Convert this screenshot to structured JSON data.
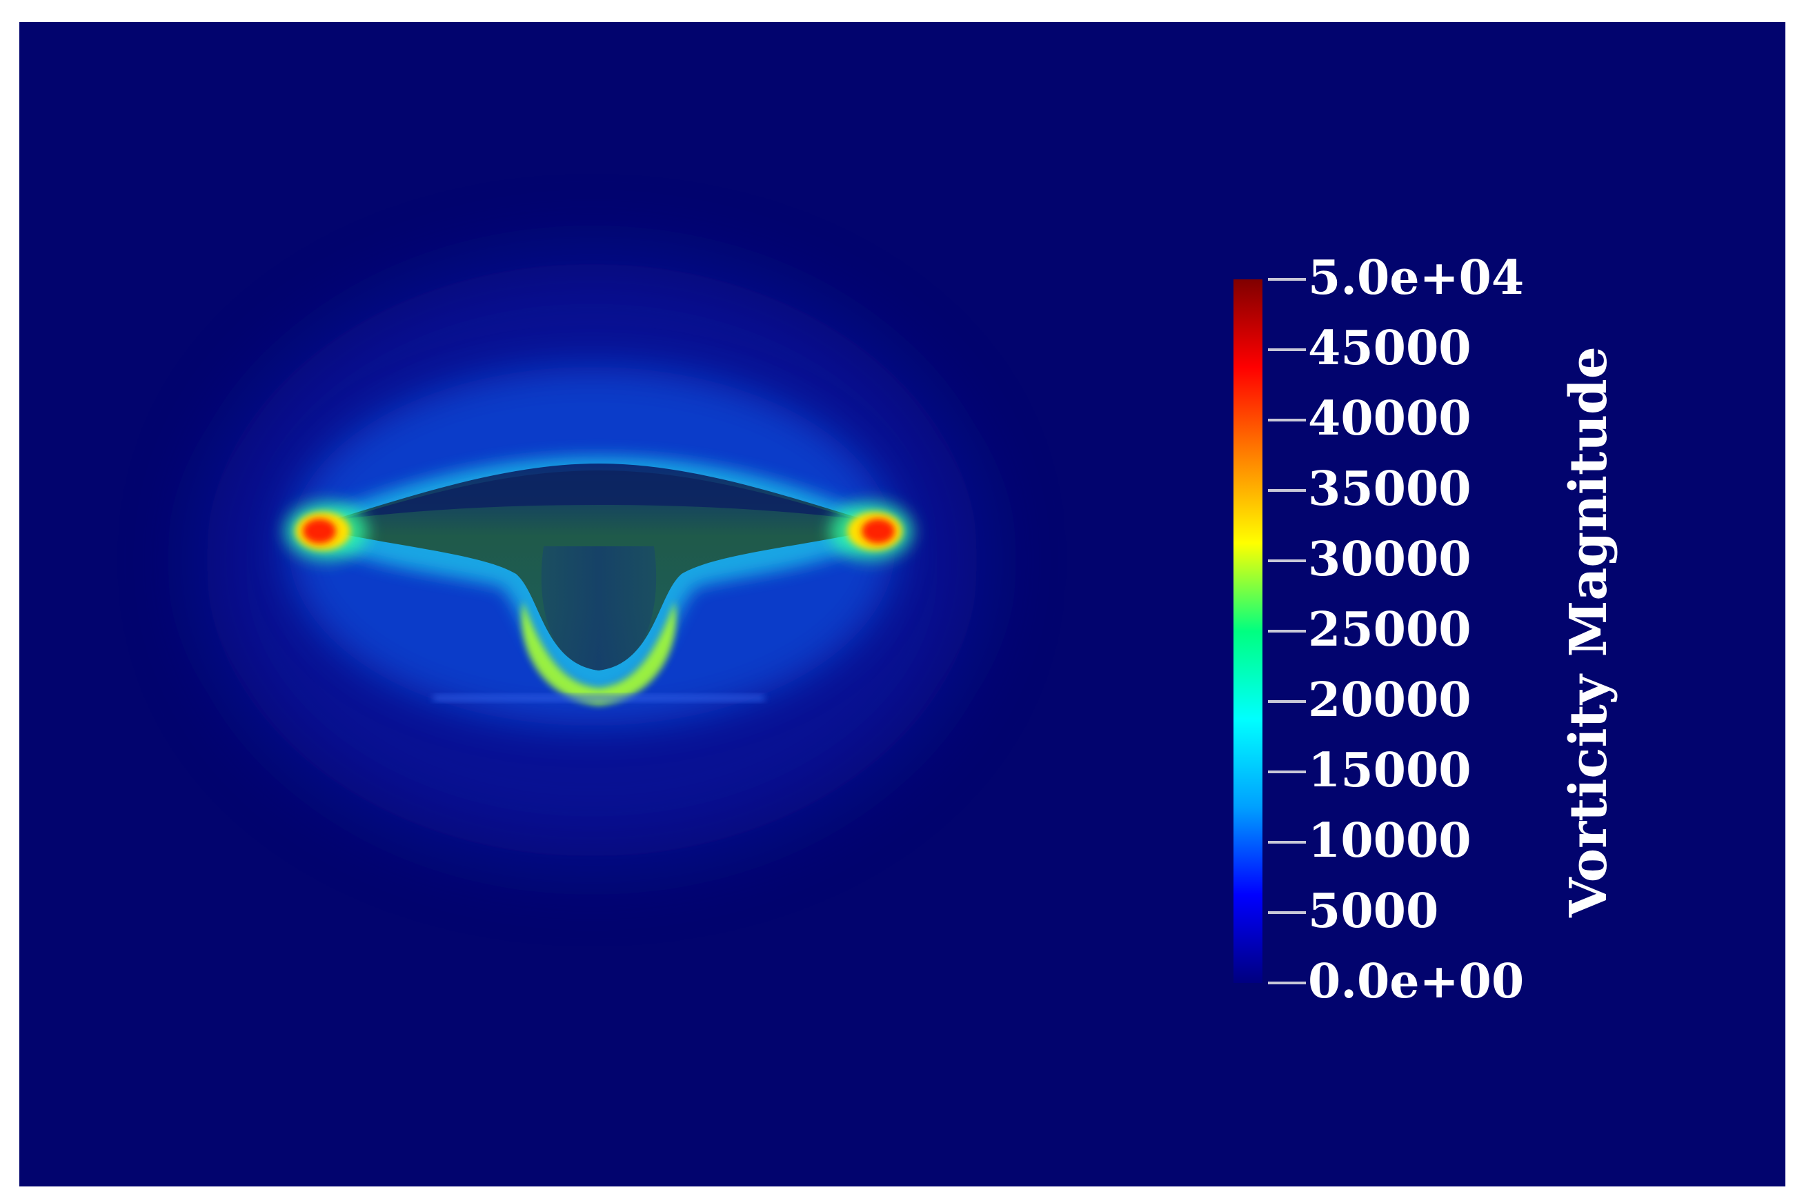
{
  "figure": {
    "background_color": "#02046e",
    "colormap": [
      "#000080",
      "#0000ff",
      "#00a0ff",
      "#00ffff",
      "#00ff80",
      "#ffff00",
      "#ff8000",
      "#ff0000",
      "#800000"
    ]
  },
  "colorbar": {
    "title": "Vorticity Magnitude",
    "min": 0,
    "max": 50000,
    "ticks": [
      {
        "value": 50000,
        "label": "5.0e+04"
      },
      {
        "value": 45000,
        "label": "45000"
      },
      {
        "value": 40000,
        "label": "40000"
      },
      {
        "value": 35000,
        "label": "35000"
      },
      {
        "value": 30000,
        "label": "30000"
      },
      {
        "value": 25000,
        "label": "25000"
      },
      {
        "value": 20000,
        "label": "20000"
      },
      {
        "value": 15000,
        "label": "15000"
      },
      {
        "value": 10000,
        "label": "10000"
      },
      {
        "value": 5000,
        "label": "5000"
      },
      {
        "value": 0,
        "label": "0.0e+00"
      }
    ]
  }
}
